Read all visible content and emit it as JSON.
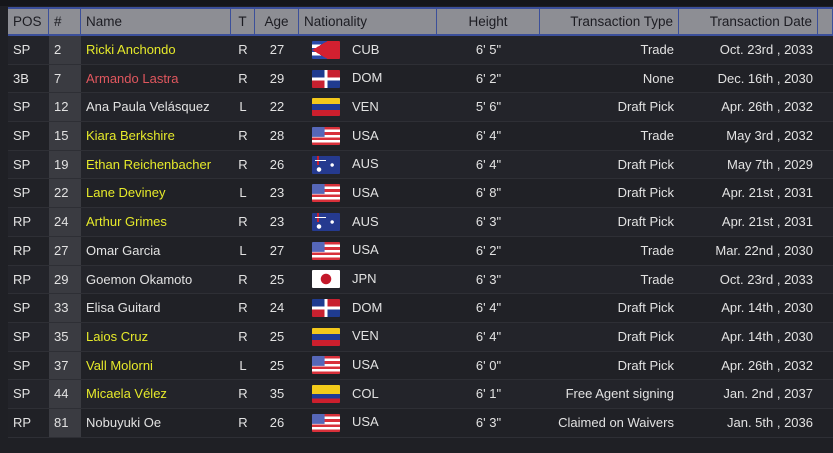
{
  "headers": {
    "pos": "POS",
    "num": "#",
    "name": "Name",
    "t": "T",
    "age": "Age",
    "nationality": "Nationality",
    "height": "Height",
    "transaction_type": "Transaction Type",
    "transaction_date": "Transaction Date"
  },
  "colors": {
    "highlight": "#e6ea2a",
    "negative": "#e0575e",
    "header_bg": "#8d8e94",
    "header_border": "#3b4f9a"
  },
  "rows": [
    {
      "pos": "SP",
      "num": "2",
      "name": "Ricki Anchondo",
      "name_color": "yellow",
      "t": "R",
      "age": "27",
      "flag": "cuba-flag",
      "nat": "CUB",
      "height": "6' 5\"",
      "type": "Trade",
      "date": "Oct. 23rd , 2033"
    },
    {
      "pos": "3B",
      "num": "7",
      "name": "Armando Lastra",
      "name_color": "red",
      "t": "R",
      "age": "29",
      "flag": "dominican-republic-flag",
      "nat": "DOM",
      "height": "6' 2\"",
      "type": "None",
      "date": "Dec. 16th , 2030"
    },
    {
      "pos": "SP",
      "num": "12",
      "name": "Ana Paula Velásquez",
      "name_color": "white",
      "t": "L",
      "age": "22",
      "flag": "venezuela-flag",
      "nat": "VEN",
      "height": "5' 6\"",
      "type": "Draft Pick",
      "date": "Apr. 26th , 2032"
    },
    {
      "pos": "SP",
      "num": "15",
      "name": "Kiara Berkshire",
      "name_color": "yellow",
      "t": "R",
      "age": "28",
      "flag": "usa-flag",
      "nat": "USA",
      "height": "6' 4\"",
      "type": "Trade",
      "date": "May 3rd , 2032"
    },
    {
      "pos": "SP",
      "num": "19",
      "name": "Ethan Reichenbacher",
      "name_color": "yellow",
      "t": "R",
      "age": "26",
      "flag": "australia-flag",
      "nat": "AUS",
      "height": "6' 4\"",
      "type": "Draft Pick",
      "date": "May 7th , 2029"
    },
    {
      "pos": "SP",
      "num": "22",
      "name": "Lane Deviney",
      "name_color": "yellow",
      "t": "L",
      "age": "23",
      "flag": "usa-flag",
      "nat": "USA",
      "height": "6' 8\"",
      "type": "Draft Pick",
      "date": "Apr. 21st , 2031"
    },
    {
      "pos": "RP",
      "num": "24",
      "name": "Arthur Grimes",
      "name_color": "yellow",
      "t": "R",
      "age": "23",
      "flag": "australia-flag",
      "nat": "AUS",
      "height": "6' 3\"",
      "type": "Draft Pick",
      "date": "Apr. 21st , 2031"
    },
    {
      "pos": "RP",
      "num": "27",
      "name": "Omar Garcia",
      "name_color": "white",
      "t": "L",
      "age": "27",
      "flag": "usa-flag",
      "nat": "USA",
      "height": "6' 2\"",
      "type": "Trade",
      "date": "Mar. 22nd , 2030"
    },
    {
      "pos": "RP",
      "num": "29",
      "name": "Goemon Okamoto",
      "name_color": "white",
      "t": "R",
      "age": "25",
      "flag": "japan-flag",
      "nat": "JPN",
      "height": "6' 3\"",
      "type": "Trade",
      "date": "Oct. 23rd , 2033"
    },
    {
      "pos": "SP",
      "num": "33",
      "name": "Elisa Guitard",
      "name_color": "white",
      "t": "R",
      "age": "24",
      "flag": "dominican-republic-flag",
      "nat": "DOM",
      "height": "6' 4\"",
      "type": "Draft Pick",
      "date": "Apr. 14th , 2030"
    },
    {
      "pos": "SP",
      "num": "35",
      "name": "Laios Cruz",
      "name_color": "yellow",
      "t": "R",
      "age": "25",
      "flag": "venezuela-flag",
      "nat": "VEN",
      "height": "6' 4\"",
      "type": "Draft Pick",
      "date": "Apr. 14th , 2030"
    },
    {
      "pos": "SP",
      "num": "37",
      "name": "Vall Molorni",
      "name_color": "yellow",
      "t": "L",
      "age": "25",
      "flag": "usa-flag",
      "nat": "USA",
      "height": "6' 0\"",
      "type": "Draft Pick",
      "date": "Apr. 26th , 2032"
    },
    {
      "pos": "SP",
      "num": "44",
      "name": "Micaela Vélez",
      "name_color": "yellow",
      "t": "R",
      "age": "35",
      "flag": "colombia-flag",
      "nat": "COL",
      "height": "6' 1\"",
      "type": "Free Agent signing",
      "date": "Jan. 2nd , 2037"
    },
    {
      "pos": "RP",
      "num": "81",
      "name": "Nobuyuki Oe",
      "name_color": "white",
      "t": "R",
      "age": "26",
      "flag": "usa-flag",
      "nat": "USA",
      "height": "6' 3\"",
      "type": "Claimed on Waivers",
      "date": "Jan. 5th , 2036"
    }
  ]
}
